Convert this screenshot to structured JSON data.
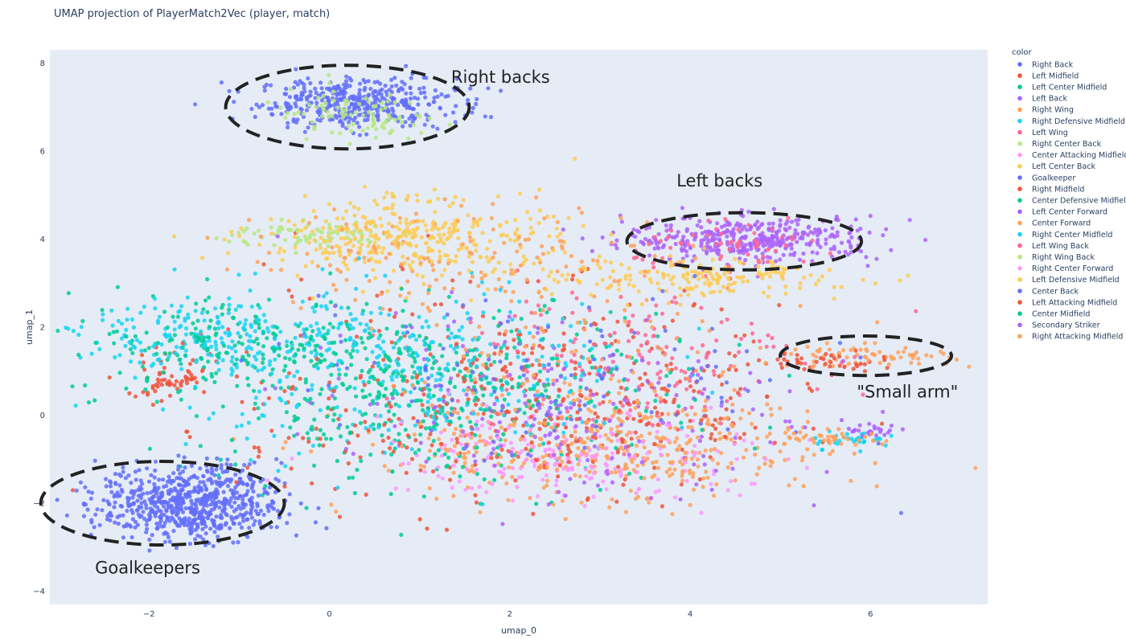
{
  "chart_data": {
    "type": "scatter",
    "title": "UMAP projection of PlayerMatch2Vec (player, match)",
    "xlabel": "umap_0",
    "ylabel": "umap_1",
    "xlim": [
      -3.1,
      7.3
    ],
    "ylim": [
      -4.3,
      8.3
    ],
    "x_ticks": [
      -2,
      0,
      2,
      4,
      6
    ],
    "y_ticks": [
      -4,
      -2,
      0,
      2,
      4,
      6,
      8
    ],
    "background": "#e5ecf6",
    "grid": false,
    "legend_title": "color",
    "legend_position": "right",
    "series": [
      {
        "name": "Right Back",
        "color": "#636efa",
        "clusters": [
          [
            0.3,
            7.1,
            0.55,
            0.28,
            420,
            0
          ]
        ]
      },
      {
        "name": "Left Midfield",
        "color": "#ef553b",
        "clusters": [
          [
            -1.8,
            0.8,
            0.3,
            0.25,
            60,
            0
          ],
          [
            2.0,
            1.0,
            1.6,
            1.1,
            180,
            0
          ]
        ]
      },
      {
        "name": "Left Center Midfield",
        "color": "#00cc96",
        "clusters": [
          [
            1.2,
            0.6,
            1.2,
            1.0,
            160,
            0
          ]
        ]
      },
      {
        "name": "Left Back",
        "color": "#ab63fa",
        "clusters": [
          [
            4.7,
            4.0,
            0.7,
            0.25,
            400,
            0
          ]
        ]
      },
      {
        "name": "Right Wing",
        "color": "#ffa15a",
        "clusters": [
          [
            2.8,
            -1.0,
            1.3,
            0.6,
            200,
            0
          ],
          [
            5.9,
            1.35,
            0.5,
            0.12,
            70,
            0
          ]
        ]
      },
      {
        "name": "Right Defensive Midfield",
        "color": "#19d3f3",
        "clusters": [
          [
            -1.2,
            1.8,
            0.8,
            0.4,
            200,
            0
          ],
          [
            0.5,
            1.0,
            1.2,
            0.9,
            140,
            0
          ]
        ]
      },
      {
        "name": "Left Wing",
        "color": "#ff6692",
        "clusters": [
          [
            3.2,
            1.4,
            1.0,
            0.8,
            160,
            0
          ]
        ]
      },
      {
        "name": "Right Center Back",
        "color": "#b6e880",
        "clusters": [
          [
            0.3,
            6.6,
            0.4,
            0.25,
            40,
            0
          ],
          [
            -0.2,
            4.1,
            0.5,
            0.15,
            80,
            0
          ]
        ]
      },
      {
        "name": "Center Attacking Midfield",
        "color": "#ff97ff",
        "clusters": [
          [
            2.8,
            -1.1,
            0.9,
            0.4,
            120,
            0
          ]
        ]
      },
      {
        "name": "Left Center Back",
        "color": "#fecb52",
        "clusters": [
          [
            1.0,
            3.9,
            0.9,
            0.45,
            240,
            0
          ],
          [
            4.5,
            3.1,
            0.7,
            0.2,
            100,
            0
          ]
        ]
      },
      {
        "name": "Goalkeeper",
        "color": "#636efa",
        "clusters": [
          [
            -1.55,
            -2.0,
            0.5,
            0.42,
            700,
            0
          ]
        ]
      },
      {
        "name": "Right Midfield",
        "color": "#ef553b",
        "clusters": [
          [
            1.8,
            -0.2,
            1.4,
            1.0,
            180,
            0
          ]
        ]
      },
      {
        "name": "Center Defensive Midfield",
        "color": "#00cc96",
        "clusters": [
          [
            -0.8,
            1.6,
            1.1,
            0.6,
            220,
            0
          ],
          [
            0.8,
            0.3,
            1.0,
            0.8,
            140,
            0
          ]
        ]
      },
      {
        "name": "Left Center Forward",
        "color": "#ab63fa",
        "clusters": [
          [
            2.2,
            0.5,
            1.4,
            1.0,
            120,
            0
          ]
        ]
      },
      {
        "name": "Center Forward",
        "color": "#ffa15a",
        "clusters": [
          [
            3.2,
            -0.6,
            1.2,
            0.6,
            200,
            0
          ],
          [
            1.5,
            3.6,
            1.2,
            0.6,
            160,
            0
          ]
        ]
      },
      {
        "name": "Right Center Midfield",
        "color": "#19d3f3",
        "clusters": [
          [
            0.9,
            1.1,
            1.3,
            1.0,
            200,
            0
          ],
          [
            5.8,
            -0.55,
            0.25,
            0.1,
            35,
            0
          ]
        ]
      },
      {
        "name": "Left Wing Back",
        "color": "#ff6692",
        "clusters": [
          [
            4.6,
            3.8,
            0.6,
            0.25,
            60,
            0
          ]
        ]
      },
      {
        "name": "Right Wing Back",
        "color": "#b6e880",
        "clusters": [
          [
            0.2,
            6.9,
            0.5,
            0.25,
            50,
            0
          ]
        ]
      },
      {
        "name": "Right Center Forward",
        "color": "#ff97ff",
        "clusters": [
          [
            2.6,
            -0.8,
            1.2,
            0.6,
            100,
            0
          ]
        ]
      },
      {
        "name": "Left Defensive Midfield",
        "color": "#fecb52",
        "clusters": [
          [
            0.7,
            4.3,
            0.6,
            0.35,
            120,
            0
          ],
          [
            3.5,
            3.1,
            0.8,
            0.25,
            80,
            0
          ]
        ]
      },
      {
        "name": "Center Back",
        "color": "#636efa",
        "clusters": [
          [
            2.5,
            0.8,
            1.5,
            1.0,
            120,
            0
          ]
        ]
      },
      {
        "name": "Left Attacking Midfield",
        "color": "#ef553b",
        "clusters": [
          [
            2.8,
            0.0,
            1.3,
            0.8,
            100,
            0
          ],
          [
            5.4,
            1.2,
            0.4,
            0.12,
            40,
            0
          ]
        ]
      },
      {
        "name": "Center Midfield",
        "color": "#00cc96",
        "clusters": [
          [
            1.5,
            0.4,
            1.4,
            1.0,
            140,
            0
          ]
        ]
      },
      {
        "name": "Secondary Striker",
        "color": "#ab63fa",
        "clusters": [
          [
            3.0,
            -0.3,
            1.1,
            0.7,
            80,
            0
          ],
          [
            6.0,
            -0.35,
            0.15,
            0.08,
            25,
            0
          ]
        ]
      },
      {
        "name": "Right Attacking Midfield",
        "color": "#ffa15a",
        "clusters": [
          [
            3.1,
            1.0,
            1.2,
            0.8,
            100,
            0
          ],
          [
            5.5,
            -0.5,
            0.3,
            0.1,
            40,
            0
          ]
        ]
      }
    ],
    "annotations": [
      {
        "text": "Right backs",
        "x": 1.35,
        "y": 7.55,
        "ellipse": {
          "cx": 0.2,
          "cy": 7.0,
          "rx": 1.35,
          "ry": 0.95
        }
      },
      {
        "text": "Left backs",
        "x": 3.85,
        "y": 5.2,
        "ellipse": {
          "cx": 4.6,
          "cy": 3.95,
          "rx": 1.3,
          "ry": 0.65
        }
      },
      {
        "text": "\"Small arm\"",
        "x": 5.85,
        "y": 0.4,
        "ellipse": {
          "cx": 5.95,
          "cy": 1.35,
          "rx": 0.95,
          "ry": 0.45
        }
      },
      {
        "text": "Goalkeepers",
        "x": -2.6,
        "y": -3.6,
        "ellipse": {
          "cx": -1.85,
          "cy": -2.0,
          "rx": 1.35,
          "ry": 0.95
        }
      }
    ]
  }
}
